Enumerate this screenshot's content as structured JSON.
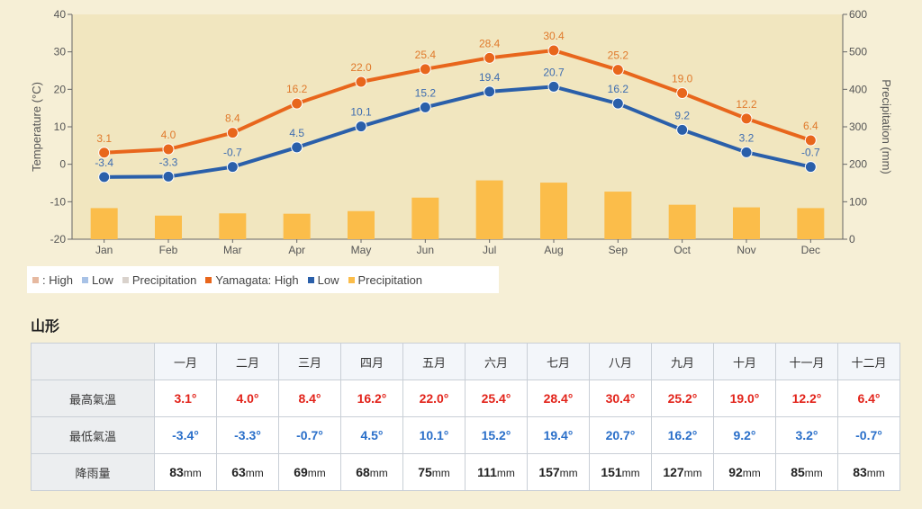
{
  "chart_data": {
    "type": "line",
    "categories": [
      "Jan",
      "Feb",
      "Mar",
      "Apr",
      "May",
      "Jun",
      "Jul",
      "Aug",
      "Sep",
      "Oct",
      "Nov",
      "Dec"
    ],
    "series": [
      {
        "name": "High",
        "axis": "left",
        "color": "#e8661c",
        "label_color": "#e07a2c",
        "values": [
          3.1,
          4.0,
          8.4,
          16.2,
          22.0,
          25.4,
          28.4,
          30.4,
          25.2,
          19.0,
          12.2,
          6.4
        ]
      },
      {
        "name": "Low",
        "axis": "left",
        "color": "#2a5faa",
        "label_color": "#3d6cb0",
        "values": [
          -3.4,
          -3.3,
          -0.7,
          4.5,
          10.1,
          15.2,
          19.4,
          20.7,
          16.2,
          9.2,
          3.2,
          -0.7
        ]
      },
      {
        "name": "Precipitation",
        "type": "bar",
        "axis": "right",
        "color": "#fbbd4a",
        "values": [
          83,
          63,
          69,
          68,
          75,
          111,
          157,
          151,
          127,
          92,
          85,
          83
        ]
      }
    ],
    "ylabel": "Temperature (°C)",
    "y2label": "Precipitation (mm)",
    "ylim": [
      -20,
      40
    ],
    "y2lim": [
      0,
      600
    ],
    "yticks": [
      40,
      30,
      20,
      10,
      0,
      -10,
      -20
    ],
    "y2ticks": [
      600,
      500,
      400,
      300,
      200,
      100,
      0
    ],
    "grid": false,
    "legend": "bottom-left"
  },
  "legend": {
    "items": [
      {
        "label": ": High",
        "color": "#e6b9a0"
      },
      {
        "label": "Low",
        "color": "#a8c2e6"
      },
      {
        "label": "Precipitation",
        "color": "#d9d2cc"
      },
      {
        "label": "Yamagata: High",
        "color": "#e8661c"
      },
      {
        "label": "Low",
        "color": "#2a5faa"
      },
      {
        "label": "Precipitation",
        "color": "#fbbd4a"
      }
    ]
  },
  "table": {
    "title": "山形",
    "months": [
      "一月",
      "二月",
      "三月",
      "四月",
      "五月",
      "六月",
      "七月",
      "八月",
      "九月",
      "十月",
      "十一月",
      "十二月"
    ],
    "high_label": "最高氣溫",
    "low_label": "最低氣溫",
    "precip_label": "降雨量",
    "high": [
      "3.1°",
      "4.0°",
      "8.4°",
      "16.2°",
      "22.0°",
      "25.4°",
      "28.4°",
      "30.4°",
      "25.2°",
      "19.0°",
      "12.2°",
      "6.4°"
    ],
    "low": [
      "-3.4°",
      "-3.3°",
      "-0.7°",
      "4.5°",
      "10.1°",
      "15.2°",
      "19.4°",
      "20.7°",
      "16.2°",
      "9.2°",
      "3.2°",
      "-0.7°"
    ],
    "precip": [
      "83",
      "63",
      "69",
      "68",
      "75",
      "111",
      "157",
      "151",
      "127",
      "92",
      "85",
      "83"
    ],
    "precip_unit": "mm"
  }
}
